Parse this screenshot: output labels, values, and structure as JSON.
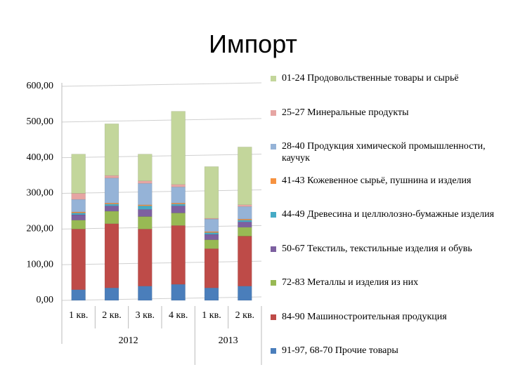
{
  "chart_data": {
    "type": "stacked_bar",
    "title": "Импорт",
    "groups": [
      {
        "label": "2012",
        "categories": [
          "1 кв.",
          "2 кв.",
          "3 кв.",
          "4 кв."
        ]
      },
      {
        "label": "2013",
        "categories": [
          "1 кв.",
          "2 кв."
        ]
      }
    ],
    "ylim": [
      0,
      600
    ],
    "yticks": [
      {
        "value": 0,
        "label": "0,00"
      },
      {
        "value": 100,
        "label": "100,00"
      },
      {
        "value": 200,
        "label": "200,00"
      },
      {
        "value": 300,
        "label": "300,00"
      },
      {
        "value": 400,
        "label": "400,00"
      },
      {
        "value": 500,
        "label": "500,00"
      },
      {
        "value": 600,
        "label": "600,00"
      }
    ],
    "grid": true,
    "series": [
      {
        "name": "91-97, 68-70  Прочие товары",
        "color": "#4a7ebb",
        "values": [
          30,
          35,
          40,
          45,
          35,
          40
        ]
      },
      {
        "name": "84-90  Машиностроительная продукция",
        "color": "#be4b48",
        "values": [
          170,
          180,
          160,
          165,
          110,
          140
        ]
      },
      {
        "name": "72-83  Металлы и изделия из них",
        "color": "#98b954",
        "values": [
          25,
          35,
          35,
          35,
          25,
          25
        ]
      },
      {
        "name": "50-67  Текстиль, текстильные изделия и обувь",
        "color": "#7d60a0",
        "values": [
          15,
          15,
          20,
          20,
          15,
          15
        ]
      },
      {
        "name": "44-49  Древесина и целлюлозно-бумажные изделия",
        "color": "#46aac5",
        "values": [
          5,
          5,
          10,
          5,
          5,
          5
        ]
      },
      {
        "name": "41-43  Кожевенное сырьё, пушнина и изделия",
        "color": "#f69240",
        "values": [
          3,
          3,
          3,
          3,
          3,
          3
        ]
      },
      {
        "name": "28-40  Продукция химической промышленности, каучук",
        "color": "#95b3d7",
        "values": [
          35,
          70,
          60,
          45,
          35,
          35
        ]
      },
      {
        "name": "25-27  Минеральные продукты",
        "color": "#e6a5a3",
        "values": [
          17,
          7,
          7,
          7,
          2,
          5
        ]
      },
      {
        "name": "01-24  Продовольственные товары и сырьё",
        "color": "#c3d69b",
        "values": [
          110,
          145,
          75,
          205,
          145,
          162
        ]
      }
    ]
  }
}
